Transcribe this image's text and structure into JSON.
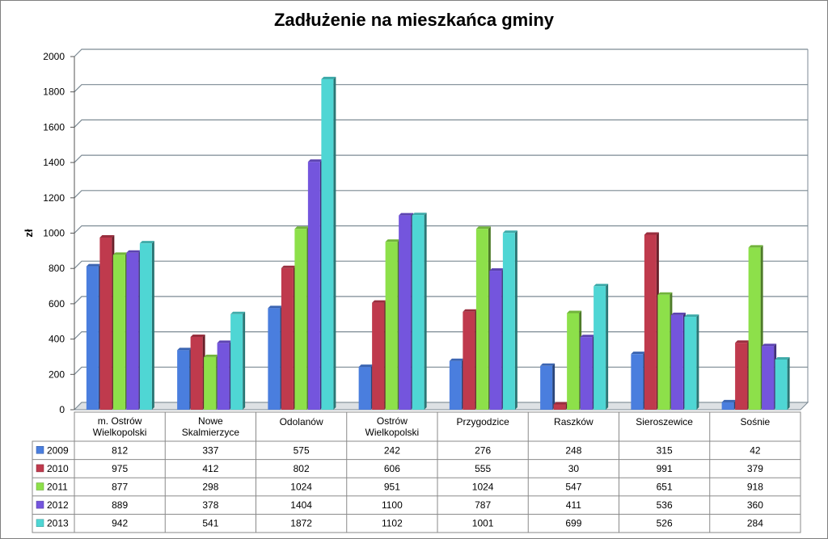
{
  "chart_data": {
    "type": "bar",
    "title": "Zadłużenie na mieszkańca gminy",
    "ylabel": "zł",
    "xlabel": "",
    "ylim": [
      0,
      2000
    ],
    "yticks": [
      0,
      200,
      400,
      600,
      800,
      1000,
      1200,
      1400,
      1600,
      1800,
      2000
    ],
    "grid": true,
    "legend": "data-table-left",
    "categories": [
      [
        "m. Ostrów",
        "Wielkopolski"
      ],
      [
        "Nowe",
        "Skalmierzyce"
      ],
      [
        "Odolanów"
      ],
      [
        "Ostrów",
        "Wielkopolski"
      ],
      [
        "Przygodzice"
      ],
      [
        "Raszków"
      ],
      [
        "Sieroszewice"
      ],
      [
        "Sośnie"
      ]
    ],
    "series": [
      {
        "name": "2009",
        "color": "#4a7ede",
        "values": [
          812,
          337,
          575,
          242,
          276,
          248,
          315,
          42
        ]
      },
      {
        "name": "2010",
        "color": "#bf3a4d",
        "values": [
          975,
          412,
          802,
          606,
          555,
          30,
          991,
          379
        ]
      },
      {
        "name": "2011",
        "color": "#8de04a",
        "values": [
          877,
          298,
          1024,
          951,
          1024,
          547,
          651,
          918
        ]
      },
      {
        "name": "2012",
        "color": "#7455dd",
        "values": [
          889,
          378,
          1404,
          1100,
          787,
          411,
          536,
          360
        ]
      },
      {
        "name": "2013",
        "color": "#4fd6d4",
        "values": [
          942,
          541,
          1872,
          1102,
          1001,
          699,
          526,
          284
        ]
      }
    ]
  }
}
